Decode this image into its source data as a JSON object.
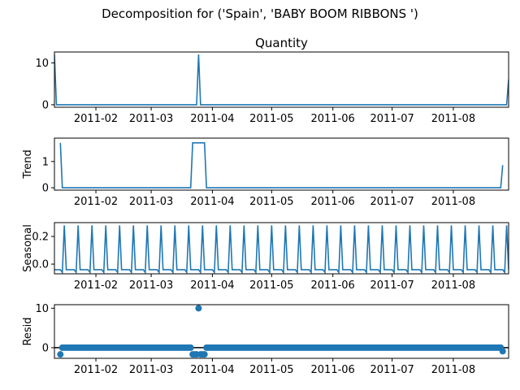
{
  "figure_title": "Decomposition for ('Spain', 'BABY BOOM RIBBONS ')",
  "colors": {
    "line": "#1f77b4",
    "axis": "#000000",
    "zero_line": "#000000"
  },
  "chart_data": [
    {
      "type": "line",
      "title": "Quantity",
      "ylabel": "",
      "xlim": [
        "2011-01-11",
        "2011-08-29"
      ],
      "ylim": [
        -0.6,
        12.6
      ],
      "yticks": [
        0,
        10
      ],
      "xticks": [
        "2011-02",
        "2011-03",
        "2011-04",
        "2011-05",
        "2011-06",
        "2011-07",
        "2011-08"
      ],
      "series": [
        {
          "points": [
            [
              "2011-01-11",
              12
            ],
            [
              "2011-01-12",
              0
            ],
            [
              "2011-03-24",
              0
            ],
            [
              "2011-03-25",
              12
            ],
            [
              "2011-03-26",
              0
            ],
            [
              "2011-08-28",
              0
            ],
            [
              "2011-08-29",
              6
            ]
          ]
        }
      ]
    },
    {
      "type": "line",
      "title": "",
      "ylabel": "Trend",
      "xlim": [
        "2011-01-11",
        "2011-08-29"
      ],
      "ylim": [
        -0.09,
        1.89
      ],
      "yticks": [
        0,
        1
      ],
      "xticks": [
        "2011-02",
        "2011-03",
        "2011-04",
        "2011-05",
        "2011-06",
        "2011-07",
        "2011-08"
      ],
      "series": [
        {
          "points": [
            [
              "2011-01-14",
              1.71
            ],
            [
              "2011-01-15",
              0
            ],
            [
              "2011-03-21",
              0
            ],
            [
              "2011-03-22",
              1.71
            ],
            [
              "2011-03-28",
              1.71
            ],
            [
              "2011-03-29",
              0
            ],
            [
              "2011-08-25",
              0
            ],
            [
              "2011-08-26",
              0.86
            ]
          ]
        }
      ]
    },
    {
      "type": "line",
      "title": "",
      "ylabel": "Seasonal",
      "xlim": [
        "2011-01-11",
        "2011-08-29"
      ],
      "ylim": [
        -0.07,
        0.3
      ],
      "yticks": [
        0.0,
        0.2
      ],
      "ytick_labels": [
        "0.0",
        "0.2"
      ],
      "xticks": [
        "2011-02",
        "2011-03",
        "2011-04",
        "2011-05",
        "2011-06",
        "2011-07",
        "2011-08"
      ],
      "series": [
        {
          "pattern": [
            -0.04,
            -0.04,
            -0.04,
            -0.04,
            -0.06,
            0.28,
            -0.04
          ],
          "start": "2011-01-11",
          "end": "2011-08-29"
        }
      ]
    },
    {
      "type": "scatter",
      "title": "",
      "ylabel": "Resid",
      "xlim": [
        "2011-01-11",
        "2011-08-29"
      ],
      "ylim": [
        -2.7,
        10.9
      ],
      "yticks": [
        0,
        10
      ],
      "xticks": [
        "2011-02",
        "2011-03",
        "2011-04",
        "2011-05",
        "2011-06",
        "2011-07",
        "2011-08"
      ],
      "zero_line": true,
      "series": [
        {
          "start": "2011-01-14",
          "end": "2011-08-26",
          "default": 0,
          "overrides": {
            "2011-01-14": -1.7,
            "2011-03-22": -1.7,
            "2011-03-23": -1.7,
            "2011-03-24": -1.7,
            "2011-03-25": 10.0,
            "2011-03-26": -1.7,
            "2011-03-27": -1.7,
            "2011-03-28": -1.7,
            "2011-08-26": -0.9
          }
        }
      ]
    }
  ]
}
